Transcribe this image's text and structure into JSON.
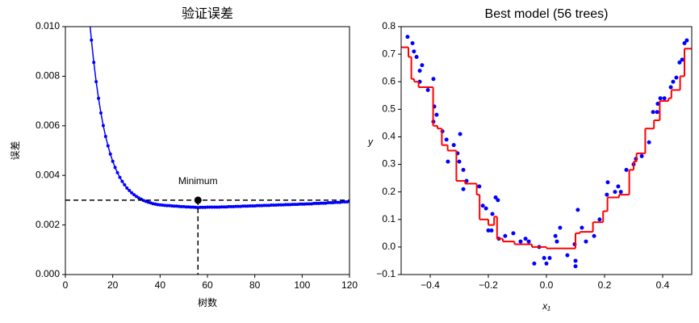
{
  "chart_data": [
    {
      "type": "line",
      "title": "验证误差",
      "xlabel": "树数",
      "ylabel": "误差",
      "xlim": [
        0,
        120
      ],
      "ylim": [
        0,
        0.01
      ],
      "xticks": [
        0,
        20,
        40,
        60,
        80,
        100,
        120
      ],
      "yticks": [
        {
          "value": 0,
          "label": "0.000"
        },
        {
          "value": 0.002,
          "label": "0.002"
        },
        {
          "value": 0.004,
          "label": "0.004"
        },
        {
          "value": 0.006,
          "label": "0.006"
        },
        {
          "value": 0.008,
          "label": "0.008"
        },
        {
          "value": 0.01,
          "label": "0.010"
        }
      ],
      "series": [
        {
          "color": "#0000ff",
          "marker": true,
          "x": [
            10,
            11,
            12,
            13,
            14,
            15,
            16,
            17,
            18,
            19,
            20,
            21,
            22,
            23,
            24,
            25,
            26,
            27,
            28,
            29,
            30,
            31,
            32,
            33,
            34,
            35,
            36,
            37,
            38,
            39,
            40,
            41,
            42,
            43,
            44,
            45,
            46,
            47,
            48,
            49,
            50,
            51,
            52,
            53,
            54,
            55,
            56,
            57,
            58,
            59,
            60,
            61,
            62,
            63,
            64,
            65,
            66,
            67,
            68,
            69,
            70,
            71,
            72,
            73,
            74,
            75,
            76,
            77,
            78,
            79,
            80,
            81,
            82,
            83,
            84,
            85,
            86,
            87,
            88,
            89,
            90,
            91,
            92,
            93,
            94,
            95,
            96,
            97,
            98,
            99,
            100,
            101,
            102,
            103,
            104,
            105,
            106,
            107,
            108,
            109,
            110,
            111,
            112,
            113,
            114,
            115,
            116,
            117,
            118,
            119,
            120
          ],
          "values": [
            0.0105,
            0.00946,
            0.00856,
            0.00778,
            0.00711,
            0.00652,
            0.00601,
            0.00557,
            0.00519,
            0.00486,
            0.00457,
            0.00432,
            0.00411,
            0.00392,
            0.00376,
            0.00362,
            0.00349,
            0.00339,
            0.0033,
            0.00322,
            0.00315,
            0.00309,
            0.00304,
            0.00299,
            0.00295,
            0.00292,
            0.00289,
            0.00286,
            0.00284,
            0.00282,
            0.00281,
            0.0028,
            0.00279,
            0.00278,
            0.00278,
            0.00277,
            0.00276,
            0.00276,
            0.00275,
            0.00274,
            0.00274,
            0.00273,
            0.00273,
            0.00272,
            0.00272,
            0.00271,
            0.0027,
            0.00271,
            0.00271,
            0.00271,
            0.00272,
            0.00272,
            0.00272,
            0.00272,
            0.00272,
            0.00272,
            0.00273,
            0.00273,
            0.00273,
            0.00274,
            0.00274,
            0.00274,
            0.00275,
            0.00275,
            0.00275,
            0.00276,
            0.00276,
            0.00276,
            0.00277,
            0.00277,
            0.00277,
            0.00278,
            0.00278,
            0.00278,
            0.00279,
            0.00279,
            0.00279,
            0.0028,
            0.0028,
            0.0028,
            0.00281,
            0.00281,
            0.00281,
            0.00282,
            0.00282,
            0.00282,
            0.00283,
            0.00283,
            0.00283,
            0.00284,
            0.00284,
            0.00284,
            0.00285,
            0.00285,
            0.00285,
            0.00287,
            0.00287,
            0.00287,
            0.00288,
            0.00288,
            0.00288,
            0.0029,
            0.0029,
            0.0029,
            0.00291,
            0.00291,
            0.00291,
            0.00293,
            0.00293,
            0.00293,
            0.00295
          ]
        }
      ],
      "minimum_point": {
        "x": 56,
        "y": 0.003,
        "color": "#000000"
      },
      "annotations": [
        {
          "text": "Minimum"
        }
      ]
    },
    {
      "type": "scatter",
      "title": "Best model (56 trees)",
      "xlabel": "x₁",
      "ylabel": "y",
      "xlim": [
        -0.5,
        0.5
      ],
      "ylim": [
        -0.1,
        0.8
      ],
      "xticks": [
        {
          "value": -0.4,
          "label": "−0.4"
        },
        {
          "value": -0.2,
          "label": "−0.2"
        },
        {
          "value": 0,
          "label": "0.0"
        },
        0.2,
        0.4
      ],
      "yticks": [
        {
          "value": -0.1,
          "label": "−0.1"
        },
        {
          "value": 0,
          "label": "0.0"
        },
        0.1,
        0.2,
        0.3,
        0.4,
        0.5,
        0.6,
        0.7,
        0.8
      ],
      "series": [
        {
          "type": "scatter",
          "color": "#0000ff",
          "x": [
            -0.478,
            -0.461,
            -0.456,
            -0.447,
            -0.428,
            -0.436,
            -0.436,
            -0.408,
            -0.389,
            -0.386,
            -0.378,
            -0.389,
            -0.358,
            -0.344,
            -0.339,
            -0.319,
            -0.306,
            -0.297,
            -0.3,
            -0.286,
            -0.286,
            -0.275,
            -0.231,
            -0.219,
            -0.208,
            -0.2,
            -0.189,
            -0.186,
            -0.175,
            -0.167,
            -0.164,
            -0.142,
            -0.114,
            -0.089,
            -0.072,
            -0.061,
            -0.042,
            -0.025,
            -0.008,
            0,
            0.011,
            0.031,
            0.036,
            0.047,
            0.072,
            0.1,
            0.1,
            0.097,
            0.108,
            0.122,
            0.136,
            0.164,
            0.183,
            0.208,
            0.211,
            0.236,
            0.247,
            0.256,
            0.275,
            0.3,
            0.308,
            0.328,
            0.353,
            0.367,
            0.381,
            0.383,
            0.392,
            0.406,
            0.428,
            0.436,
            0.447,
            0.458,
            0.467,
            0.475,
            0.483
          ],
          "values": [
            0.763,
            0.74,
            0.71,
            0.69,
            0.66,
            0.64,
            0.6,
            0.57,
            0.61,
            0.51,
            0.48,
            0.455,
            0.42,
            0.39,
            0.31,
            0.37,
            0.34,
            0.41,
            0.31,
            0.28,
            0.21,
            0.24,
            0.22,
            0.15,
            0.14,
            0.06,
            0.06,
            0.12,
            0.18,
            0.17,
            0.03,
            0.04,
            0.05,
            0.02,
            0.03,
            0.02,
            -0.06,
            0,
            -0.04,
            -0.06,
            -0.04,
            0.04,
            0.02,
            0.07,
            -0.03,
            -0.07,
            -0.05,
            0.01,
            0.135,
            0.07,
            0.02,
            0.04,
            0.1,
            0.19,
            0.235,
            0.2,
            0.22,
            0.2,
            0.28,
            0.3,
            0.32,
            0.33,
            0.38,
            0.49,
            0.49,
            0.52,
            0.54,
            0.54,
            0.58,
            0.6,
            0.615,
            0.67,
            0.68,
            0.74,
            0.75
          ]
        },
        {
          "type": "step",
          "color": "#ff0000",
          "x": [
            -0.5,
            -0.475,
            -0.465,
            -0.455,
            -0.44,
            -0.39,
            -0.375,
            -0.36,
            -0.34,
            -0.31,
            -0.28,
            -0.24,
            -0.23,
            -0.2,
            -0.18,
            -0.17,
            -0.15,
            -0.11,
            -0.05,
            0,
            0.1,
            0.115,
            0.16,
            0.195,
            0.21,
            0.25,
            0.285,
            0.3,
            0.31,
            0.34,
            0.37,
            0.39,
            0.42,
            0.43,
            0.46,
            0.475
          ],
          "values": [
            0.725,
            0.69,
            0.61,
            0.6,
            0.58,
            0.44,
            0.43,
            0.37,
            0.35,
            0.24,
            0.23,
            0.19,
            0.1,
            0.08,
            0.11,
            0.03,
            0.02,
            0.01,
            0,
            -0.005,
            0.05,
            0.055,
            0.09,
            0.13,
            0.18,
            0.19,
            0.28,
            0.31,
            0.34,
            0.43,
            0.46,
            0.53,
            0.54,
            0.57,
            0.62,
            0.72
          ]
        }
      ]
    }
  ]
}
